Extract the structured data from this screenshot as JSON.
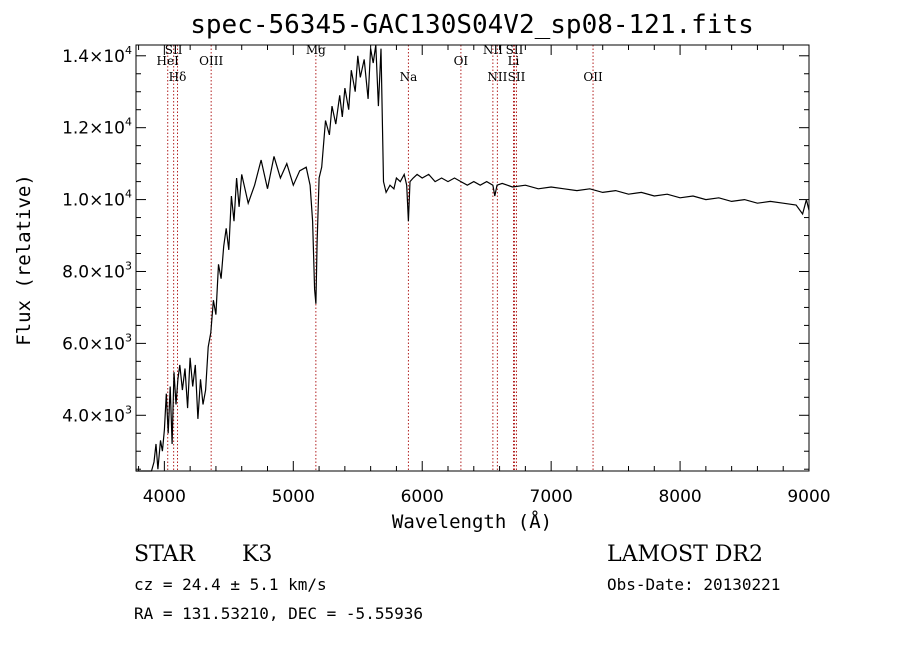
{
  "chart_data": {
    "type": "line",
    "title": "spec-56345-GAC130S04V2_sp08-121.fits",
    "xlabel": "Wavelength (Å)",
    "ylabel": "Flux (relative)",
    "xlim": [
      3780,
      9000
    ],
    "ylim": [
      2450,
      14300
    ],
    "x_ticks": [
      4000,
      5000,
      6000,
      7000,
      8000,
      9000
    ],
    "y_ticks": [
      {
        "value": 4000,
        "mant": "4.0×10",
        "exp": "3"
      },
      {
        "value": 6000,
        "mant": "6.0×10",
        "exp": "3"
      },
      {
        "value": 8000,
        "mant": "8.0×10",
        "exp": "3"
      },
      {
        "value": 10000,
        "mant": "1.0×10",
        "exp": "4"
      },
      {
        "value": 12000,
        "mant": "1.2×10",
        "exp": "4"
      },
      {
        "value": 14000,
        "mant": "1.4×10",
        "exp": "4"
      }
    ],
    "line_color": "#000000",
    "marker_color": "#b22222",
    "spectral_lines": [
      {
        "label": "HeI",
        "wavelength": 4026,
        "label_y": 13750
      },
      {
        "label": "SII",
        "wavelength": 4072,
        "label_y": 14050
      },
      {
        "label": "Hδ",
        "wavelength": 4102,
        "label_y": 13300
      },
      {
        "label": "OIII",
        "wavelength": 4363,
        "label_y": 13750
      },
      {
        "label": "Mg",
        "wavelength": 5175,
        "label_y": 14050
      },
      {
        "label": "Na",
        "wavelength": 5893,
        "label_y": 13300
      },
      {
        "label": "OI",
        "wavelength": 6300,
        "label_y": 13750
      },
      {
        "label": "NII",
        "wavelength": 6548,
        "label_y": 14050
      },
      {
        "label": "NII",
        "wavelength": 6583,
        "label_y": 13300
      },
      {
        "label": "SII",
        "wavelength": 6716,
        "label_y": 14050
      },
      {
        "label": "Li",
        "wavelength": 6708,
        "label_y": 13750
      },
      {
        "label": "SII",
        "wavelength": 6731,
        "label_y": 13300
      },
      {
        "label": "OII",
        "wavelength": 7325,
        "label_y": 13300
      }
    ],
    "series": [
      {
        "x": [
          3780,
          3900,
          3920,
          3935,
          3950,
          3970,
          3985,
          4000,
          4015,
          4030,
          4045,
          4060,
          4075,
          4090,
          4105,
          4120,
          4140,
          4160,
          4180,
          4200,
          4220,
          4240,
          4260,
          4280,
          4300,
          4320,
          4340,
          4360,
          4380,
          4400,
          4420,
          4440,
          4460,
          4480,
          4500,
          4520,
          4540,
          4560,
          4580,
          4600,
          4650,
          4700,
          4750,
          4800,
          4850,
          4900,
          4950,
          5000,
          5050,
          5100,
          5130,
          5150,
          5165,
          5175,
          5185,
          5200,
          5220,
          5250,
          5280,
          5300,
          5330,
          5360,
          5380,
          5400,
          5430,
          5450,
          5480,
          5500,
          5520,
          5550,
          5580,
          5600,
          5620,
          5640,
          5660,
          5680,
          5700,
          5720,
          5750,
          5780,
          5800,
          5830,
          5860,
          5880,
          5893,
          5905,
          5930,
          5960,
          6000,
          6050,
          6100,
          6150,
          6200,
          6250,
          6300,
          6350,
          6400,
          6450,
          6500,
          6548,
          6563,
          6580,
          6620,
          6700,
          6800,
          6900,
          7000,
          7100,
          7200,
          7300,
          7400,
          7500,
          7600,
          7700,
          7800,
          7900,
          8000,
          8100,
          8200,
          8300,
          8400,
          8500,
          8600,
          8700,
          8800,
          8900,
          8950,
          8980,
          9000
        ],
        "y": [
          2450,
          2450,
          2700,
          3200,
          2500,
          3300,
          3000,
          3600,
          4600,
          3500,
          4800,
          3200,
          5200,
          4300,
          5000,
          5400,
          4700,
          5300,
          4200,
          5600,
          4800,
          5400,
          3900,
          5000,
          4300,
          4700,
          5900,
          6300,
          7200,
          6800,
          8200,
          7800,
          8700,
          9200,
          8600,
          10100,
          9400,
          10600,
          9800,
          10700,
          9900,
          10400,
          11100,
          10300,
          11200,
          10600,
          11000,
          10400,
          10800,
          10900,
          10400,
          9400,
          7500,
          7100,
          8800,
          10600,
          10900,
          12200,
          11800,
          12600,
          12100,
          12900,
          12300,
          13100,
          12500,
          13600,
          13000,
          14000,
          13400,
          13900,
          12800,
          14200,
          13800,
          14300,
          12600,
          14200,
          10500,
          10200,
          10400,
          10300,
          10600,
          10500,
          10700,
          10400,
          9400,
          10500,
          10600,
          10700,
          10600,
          10700,
          10500,
          10600,
          10500,
          10600,
          10500,
          10400,
          10500,
          10400,
          10500,
          10400,
          10100,
          10400,
          10450,
          10350,
          10400,
          10300,
          10350,
          10300,
          10250,
          10300,
          10200,
          10250,
          10150,
          10200,
          10100,
          10150,
          10050,
          10100,
          10000,
          10050,
          9950,
          10000,
          9900,
          9950,
          9900,
          9850,
          9600,
          10000,
          9700
        ]
      }
    ]
  },
  "info": {
    "object_class": "STAR",
    "subclass": "K3",
    "survey": "LAMOST DR2",
    "redshift": "cz = 24.4 ± 5.1 km/s",
    "obs_date": "Obs-Date: 20130221",
    "coords": "RA = 131.53210, DEC =  -5.55936"
  }
}
